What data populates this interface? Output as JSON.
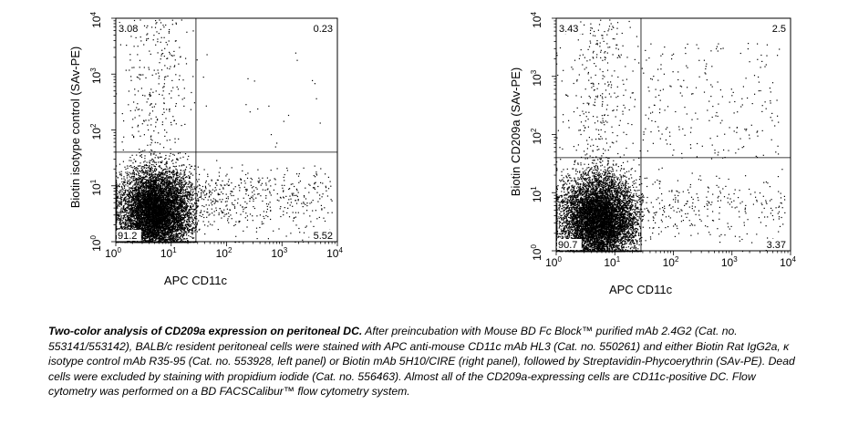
{
  "chart_data": [
    {
      "type": "scatter",
      "title": "",
      "xlabel": "APC CD11c",
      "ylabel": "Biotin isotype control (SAv-PE)",
      "xscale": "log",
      "yscale": "log",
      "xlim": [
        1,
        10000
      ],
      "ylim": [
        1,
        10000
      ],
      "xticks": [
        1,
        10,
        100,
        1000,
        10000
      ],
      "yticks": [
        1,
        10,
        100,
        1000,
        10000
      ],
      "gate": {
        "x": 28,
        "y": 40
      },
      "quadrants": {
        "upper_left": "3.08",
        "upper_right": "0.23",
        "lower_left": "91.2",
        "lower_right": "5.52"
      },
      "legend": "none",
      "grid": false
    },
    {
      "type": "scatter",
      "title": "",
      "xlabel": "APC CD11c",
      "ylabel": "Biotin CD209a (SAv-PE)",
      "xscale": "log",
      "yscale": "log",
      "xlim": [
        1,
        10000
      ],
      "ylim": [
        1,
        10000
      ],
      "xticks": [
        1,
        10,
        100,
        1000,
        10000
      ],
      "yticks": [
        1,
        10,
        100,
        1000,
        10000
      ],
      "gate": {
        "x": 28,
        "y": 40
      },
      "quadrants": {
        "upper_left": "3.43",
        "upper_right": "2.5",
        "lower_left": "90.7",
        "lower_right": "3.37"
      },
      "legend": "none",
      "grid": false
    }
  ],
  "caption": {
    "bold_title": "Two-color analysis of CD209a expression on peritoneal DC.",
    "body": " After preincubation with Mouse BD Fc Block™ purified mAb 2.4G2 (Cat. no. 553141/553142), BALB/c resident peritoneal cells were stained with APC anti-mouse CD11c mAb HL3 (Cat. no. 550261) and either Biotin Rat IgG2a, κ isotype control mAb R35-95 (Cat. no. 553928, left panel) or Biotin mAb 5H10/CIRE (right panel), followed by Streptavidin-Phycoerythrin (SAv-PE). Dead cells were excluded by staining with propidium iodide (Cat. no. 556463). Almost all of the CD209a-expressing cells are CD11c-positive DC. Flow cytometry was performed on a BD FACSCalibur™ flow cytometry system."
  }
}
